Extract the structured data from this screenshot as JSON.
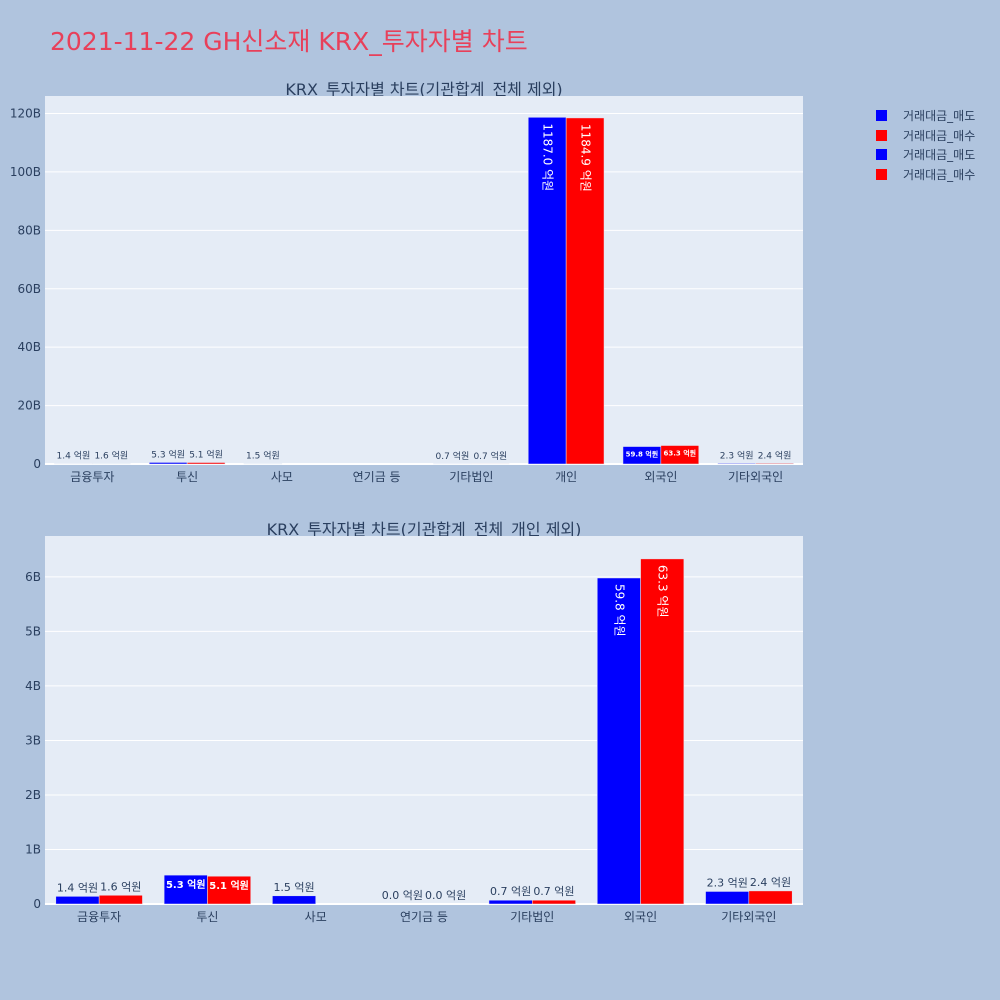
{
  "page_title": "2021-11-22 GH신소재 KRX_투자자별 차트",
  "legend": [
    {
      "label": "거래대금_매도",
      "color": "#0000ff"
    },
    {
      "label": "거래대금_매수",
      "color": "#ff0000"
    },
    {
      "label": "거래대금_매도",
      "color": "#0000ff"
    },
    {
      "label": "거래대금_매수",
      "color": "#ff0000"
    }
  ],
  "chart_data": [
    {
      "type": "bar",
      "title": "KRX_투자자별 차트(기관합계_전체 제외)",
      "categories": [
        "금융투자",
        "투신",
        "사모",
        "연기금 등",
        "기타법인",
        "개인",
        "외국인",
        "기타외국인"
      ],
      "ylim": [
        0,
        126
      ],
      "yticks": [
        0,
        20,
        40,
        60,
        80,
        100,
        120
      ],
      "ytick_labels": [
        "0",
        "20B",
        "40B",
        "60B",
        "80B",
        "100B",
        "120B"
      ],
      "series": [
        {
          "name": "거래대금_매도",
          "color": "#0000ff",
          "values": [
            0.14,
            0.53,
            0.15,
            0.0,
            0.07,
            118.7,
            5.98,
            0.23
          ],
          "labels": [
            "1.4 억원",
            "5.3 억원",
            "1.5 억원",
            "",
            "0.7 억원",
            "1187.0 억원",
            "59.8 억원",
            "2.3 억원"
          ]
        },
        {
          "name": "거래대금_매수",
          "color": "#ff0000",
          "values": [
            0.16,
            0.51,
            null,
            0.0,
            0.07,
            118.49,
            6.33,
            0.24
          ],
          "labels": [
            "1.6 억원",
            "5.1 억원",
            "",
            "",
            "0.7 억원",
            "1184.9 억원",
            "63.3 억원",
            "2.4 억원"
          ]
        }
      ]
    },
    {
      "type": "bar",
      "title": "KRX_투자자별 차트(기관합계_전체_개인 제외)",
      "categories": [
        "금융투자",
        "투신",
        "사모",
        "연기금 등",
        "기타법인",
        "외국인",
        "기타외국인"
      ],
      "ylim": [
        0,
        6.75
      ],
      "yticks": [
        0,
        1,
        2,
        3,
        4,
        5,
        6
      ],
      "ytick_labels": [
        "0",
        "1B",
        "2B",
        "3B",
        "4B",
        "5B",
        "6B"
      ],
      "series": [
        {
          "name": "거래대금_매도",
          "color": "#0000ff",
          "values": [
            0.14,
            0.53,
            0.15,
            0.0,
            0.07,
            5.98,
            0.23
          ],
          "labels": [
            "1.4 억원",
            "5.3 억원",
            "1.5 억원",
            "0.0 억원",
            "0.7 억원",
            "59.8 억원",
            "2.3 억원"
          ]
        },
        {
          "name": "거래대금_매수",
          "color": "#ff0000",
          "values": [
            0.16,
            0.51,
            null,
            0.0,
            0.07,
            6.33,
            0.24
          ],
          "labels": [
            "1.6 억원",
            "5.1 억원",
            "",
            "0.0 억원",
            "0.7 억원",
            "63.3 억원",
            "2.4 억원"
          ]
        }
      ]
    }
  ]
}
